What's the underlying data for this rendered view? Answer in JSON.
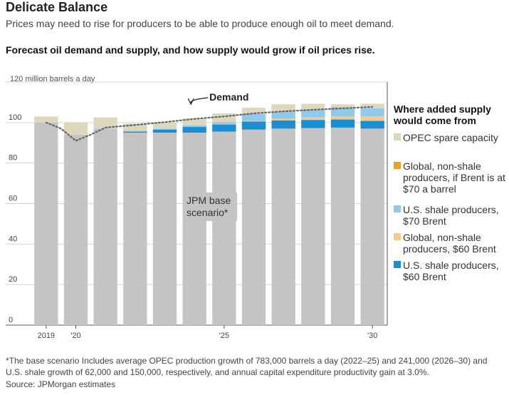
{
  "header": {
    "title": "Delicate Balance",
    "subtitle": "Prices may need to rise for producers to be able to produce enough oil to meet demand."
  },
  "chart_heading": "Forecast oil demand and supply, and how supply would grow if oil prices rise.",
  "unit_label": "120 million barrels a day",
  "legend": {
    "title": "Where added supply would come from",
    "items": [
      {
        "key": "opec",
        "label": "OPEC spare capacity",
        "color": "#ddd7bd"
      },
      {
        "key": "global70",
        "label": "Global, non-shale producers, if Brent is at $70 a barrel",
        "color": "#f0a11d"
      },
      {
        "key": "shale70",
        "label": "U.S. shale producers, $70 Brent",
        "color": "#93c9e8"
      },
      {
        "key": "global60",
        "label": "Global, non-shale producers, $60 Brent",
        "color": "#f7c98a"
      },
      {
        "key": "shale60",
        "label": "U.S. shale producers, $60 Brent",
        "color": "#1a8ed1"
      }
    ]
  },
  "annotations": {
    "demand": "Demand",
    "base": "JPM base scenario*"
  },
  "footnote": "*The base scenario Includes average OPEC production growth of 783,000 barrels a day (2022–25) and 241,000 (2026–30) and U.S. shale growth of 62,000 and 150,000, respectively, and annual capital expenditure productivity gain at 3.0%.",
  "source": "Source: JPMorgan estimates",
  "chart_data": {
    "type": "bar",
    "stacked": true,
    "ylim": [
      0,
      120
    ],
    "yticks": [
      0,
      20,
      40,
      60,
      80,
      100
    ],
    "xtick_labels": [
      {
        "index": 0,
        "label": "2019"
      },
      {
        "index": 1,
        "label": "'20"
      },
      {
        "index": 6,
        "label": "'25"
      },
      {
        "index": 11,
        "label": "'30"
      }
    ],
    "categories": [
      "2019",
      "2020",
      "2021",
      "2022",
      "2023",
      "2024",
      "2025",
      "2026",
      "2027",
      "2028",
      "2029",
      "2030"
    ],
    "series": [
      {
        "key": "base",
        "values": [
          100,
          94,
          97,
          95,
          95,
          95,
          95.5,
          96.5,
          97,
          97.3,
          97.5,
          97
        ]
      },
      {
        "key": "shale60",
        "values": [
          0,
          0,
          0,
          0.5,
          1.5,
          2.8,
          3.5,
          4,
          4,
          4,
          4,
          3.8
        ]
      },
      {
        "key": "global60",
        "values": [
          0,
          0,
          0,
          0,
          0,
          0,
          0,
          0.3,
          0.8,
          1.2,
          1.5,
          2.2
        ]
      },
      {
        "key": "shale70",
        "values": [
          0,
          0,
          0,
          0.5,
          0.5,
          0.8,
          1.2,
          3.5,
          3.7,
          4,
          4.5,
          4
        ]
      },
      {
        "key": "global70",
        "values": [
          0,
          0,
          0,
          0,
          0,
          0,
          0,
          0,
          0,
          0,
          0,
          0
        ]
      },
      {
        "key": "opec",
        "values": [
          3,
          6,
          5.5,
          3.5,
          3,
          3.4,
          4.3,
          3,
          3.5,
          2.7,
          1.5,
          2.3
        ]
      }
    ],
    "demand": {
      "name": "Demand",
      "x": [
        0,
        0.5,
        1,
        1.5,
        2,
        3,
        4,
        5,
        6,
        7,
        8,
        9,
        10,
        11
      ],
      "y": [
        100,
        97,
        91,
        94,
        97.5,
        98.8,
        100.2,
        101.8,
        103,
        104.5,
        105.5,
        106.3,
        107,
        107.7
      ]
    }
  }
}
